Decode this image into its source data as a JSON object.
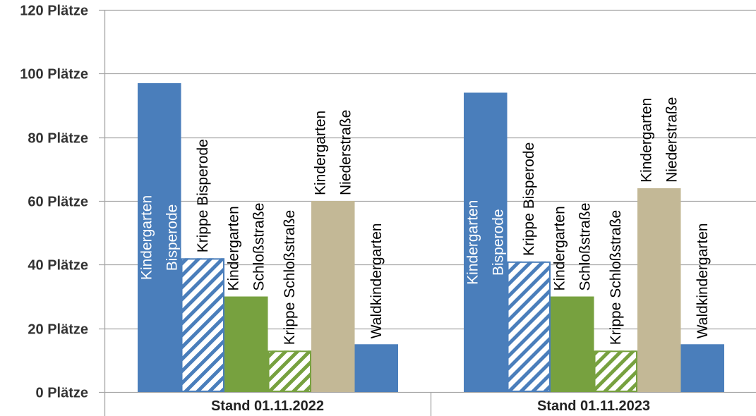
{
  "chart_data": {
    "type": "bar",
    "categories": [
      "Stand 01.11.2022",
      "Stand 01.11.2023"
    ],
    "y_unit": "Plätze",
    "ylim": [
      0,
      120
    ],
    "yticks": [
      0,
      20,
      40,
      60,
      80,
      100,
      120
    ],
    "ytick_labels": [
      "0 Plätze",
      "20 Plätze",
      "40 Plätze",
      "60 Plätze",
      "80 Plätze",
      "100 Plätze",
      "120 Plätze"
    ],
    "grid": true,
    "legend": "none",
    "series": [
      {
        "name": "Kindergarten Bisperode",
        "label_lines": [
          "Kindergarten",
          "Bisperode"
        ],
        "values": [
          97,
          94
        ],
        "color": "#4a7ebb",
        "hatched": false,
        "label_inside": true
      },
      {
        "name": "Krippe Bisperode",
        "label_lines": [
          "Krippe Bisperode"
        ],
        "values": [
          42,
          41
        ],
        "color": "#4a7ebb",
        "hatched": true,
        "label_inside": false
      },
      {
        "name": "Kindergarten Schloßstraße",
        "label_lines": [
          "Kindergarten",
          "Schloßstraße"
        ],
        "values": [
          30,
          30
        ],
        "color": "#77a13f",
        "hatched": false,
        "label_inside": false
      },
      {
        "name": "Krippe Schloßstraße",
        "label_lines": [
          "Krippe Schloßstraße"
        ],
        "values": [
          13,
          13
        ],
        "color": "#77a13f",
        "hatched": true,
        "label_inside": false
      },
      {
        "name": "Kindergarten Niederstraße",
        "label_lines": [
          "Kindergarten",
          "Niederstraße"
        ],
        "values": [
          60,
          64
        ],
        "color": "#c3b896",
        "hatched": false,
        "label_inside": false
      },
      {
        "name": "Waldkindergarten",
        "label_lines": [
          "Waldkindergarten"
        ],
        "values": [
          15,
          15
        ],
        "color": "#4a7ebb",
        "hatched": false,
        "label_inside": false
      }
    ]
  }
}
